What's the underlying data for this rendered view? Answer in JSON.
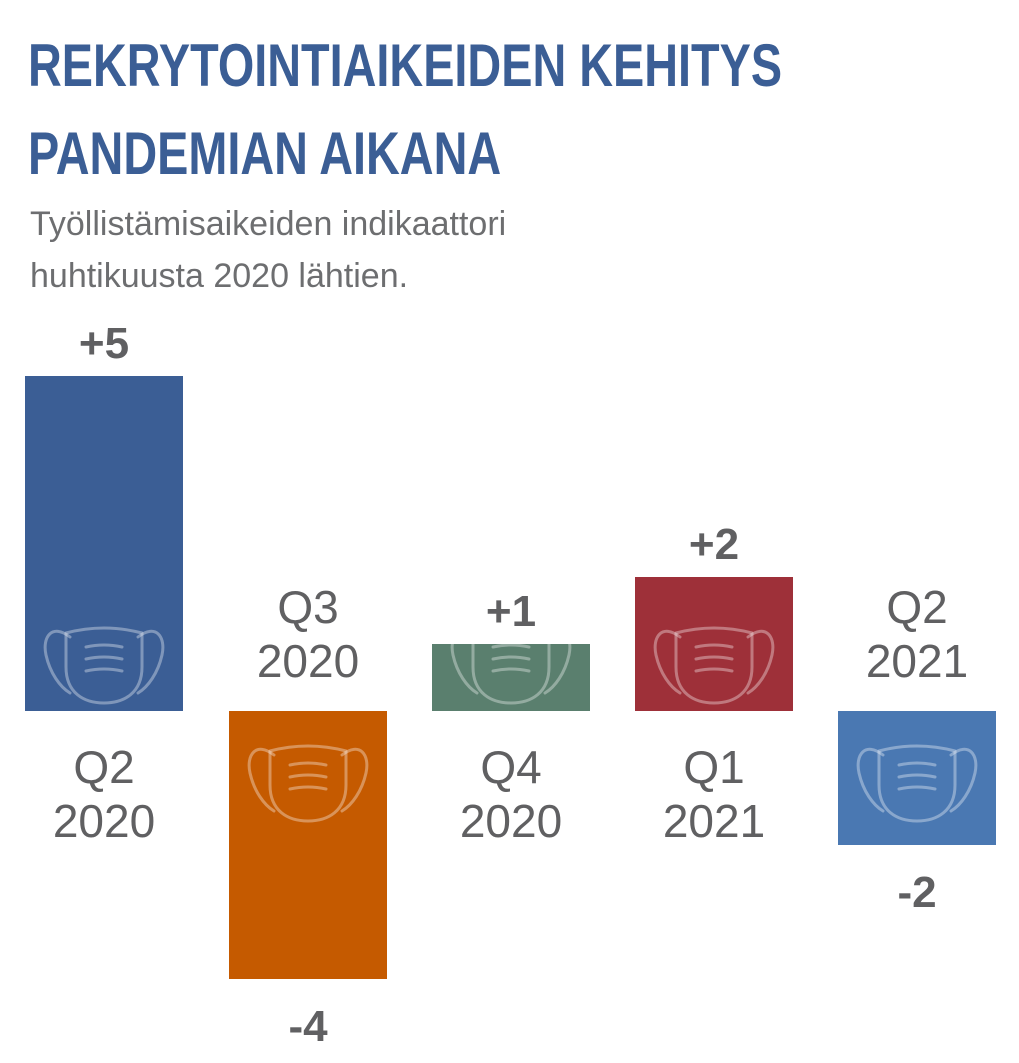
{
  "title_lines": [
    "REKRYTOINTIAIKEIDEN KEHITYS",
    "PANDEMIAN AIKANA"
  ],
  "subtitle_lines": [
    "Työllistämisaikeiden indikaattori",
    "huhtikuusta 2020 lähtien."
  ],
  "chart_data": {
    "type": "bar",
    "categories": [
      [
        "Q2",
        "2020"
      ],
      [
        "Q3",
        "2020"
      ],
      [
        "Q4",
        "2020"
      ],
      [
        "Q1",
        "2021"
      ],
      [
        "Q2",
        "2021"
      ]
    ],
    "values": [
      5,
      -4,
      1,
      2,
      -2
    ],
    "value_labels": [
      "+5",
      "-4",
      "+1",
      "+2",
      "-2"
    ],
    "colors": [
      "#3b5e95",
      "#c55a00",
      "#5a7f6e",
      "#9e3039",
      "#4a78b2"
    ],
    "bar_icon": "face-mask-icon",
    "grid": false
  }
}
